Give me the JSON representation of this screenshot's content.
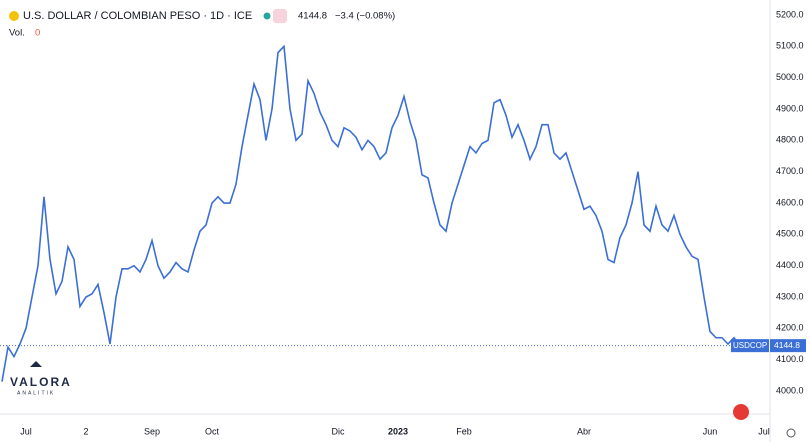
{
  "chart_data": {
    "type": "line",
    "title": "U.S. DOLLAR / COLOMBIAN PESO · 1D · ICE",
    "last_price": 4144.8,
    "change": "−3.4 (−0.08%)",
    "volume_label": "Vol.",
    "volume_value": 0,
    "symbol": "USDCOP",
    "watermark": {
      "name": "VALORA",
      "tagline": "ANALITIK"
    },
    "categories": [
      null,
      null,
      null,
      null,
      "Jul",
      null,
      null,
      null,
      null,
      null,
      null,
      null,
      null,
      null,
      "2",
      null,
      null,
      null,
      null,
      null,
      null,
      null,
      null,
      null,
      null,
      "Sep",
      null,
      null,
      null,
      null,
      null,
      null,
      null,
      null,
      null,
      "Oct",
      null,
      null,
      null,
      null,
      null,
      null,
      null,
      null,
      null,
      null,
      null,
      null,
      null,
      null,
      null,
      null,
      null,
      null,
      null,
      null,
      "Dic",
      null,
      null,
      null,
      null,
      null,
      null,
      null,
      null,
      null,
      "2023",
      null,
      null,
      null,
      null,
      null,
      null,
      null,
      null,
      null,
      null,
      "Feb",
      null,
      null,
      null,
      null,
      null,
      null,
      null,
      null,
      null,
      null,
      null,
      null,
      null,
      null,
      null,
      null,
      null,
      null,
      null,
      "Abr",
      null,
      null,
      null,
      null,
      null,
      null,
      null,
      null,
      null,
      null,
      null,
      null,
      null,
      null,
      null,
      null,
      null,
      null,
      null,
      null,
      "Jun",
      null,
      null,
      null,
      null,
      null,
      null,
      null,
      null,
      "Jul"
    ],
    "series": [
      {
        "name": "USDCOP",
        "color": "#3b6fd6",
        "values": [
          4030,
          4140,
          4110,
          4150,
          4200,
          4300,
          4400,
          4620,
          4420,
          4310,
          4350,
          4460,
          4420,
          4270,
          4300,
          4310,
          4340,
          4250,
          4150,
          4300,
          4390,
          4390,
          4400,
          4380,
          4420,
          4480,
          4400,
          4360,
          4380,
          4410,
          4390,
          4380,
          4450,
          4510,
          4530,
          4600,
          4620,
          4600,
          4600,
          4660,
          4780,
          4880,
          4980,
          4930,
          4800,
          4900,
          5080,
          5100,
          4900,
          4800,
          4820,
          4990,
          4950,
          4890,
          4850,
          4800,
          4780,
          4840,
          4830,
          4810,
          4770,
          4800,
          4780,
          4740,
          4760,
          4840,
          4880,
          4940,
          4860,
          4800,
          4690,
          4680,
          4600,
          4530,
          4510,
          4600,
          4660,
          4720,
          4780,
          4760,
          4790,
          4800,
          4920,
          4930,
          4880,
          4810,
          4850,
          4800,
          4740,
          4780,
          4850,
          4850,
          4760,
          4740,
          4760,
          4700,
          4640,
          4580,
          4590,
          4560,
          4510,
          4420,
          4410,
          4490,
          4530,
          4600,
          4700,
          4530,
          4510,
          4590,
          4530,
          4510,
          4560,
          4500,
          4460,
          4430,
          4420,
          4300,
          4190,
          4170,
          4170,
          4150,
          4170,
          4145,
          null,
          null,
          null,
          null
        ]
      }
    ],
    "ylim": [
      3933,
      5248
    ],
    "yticks": [
      {
        "value": 4000,
        "label": "4000.0"
      },
      {
        "value": 4100,
        "label": "4100.0"
      },
      {
        "value": 4200,
        "label": "4200.0"
      },
      {
        "value": 4300,
        "label": "4300.0"
      },
      {
        "value": 4400,
        "label": "4400.0"
      },
      {
        "value": 4500,
        "label": "4500.0"
      },
      {
        "value": 4600,
        "label": "4600.0"
      },
      {
        "value": 4700,
        "label": "4700.0"
      },
      {
        "value": 4800,
        "label": "4800.0"
      },
      {
        "value": 4900,
        "label": "4900.0"
      },
      {
        "value": 5000,
        "label": "5000.0"
      },
      {
        "value": 5100,
        "label": "5100.0"
      },
      {
        "value": 5200,
        "label": "5200.0"
      }
    ],
    "grid": false
  }
}
